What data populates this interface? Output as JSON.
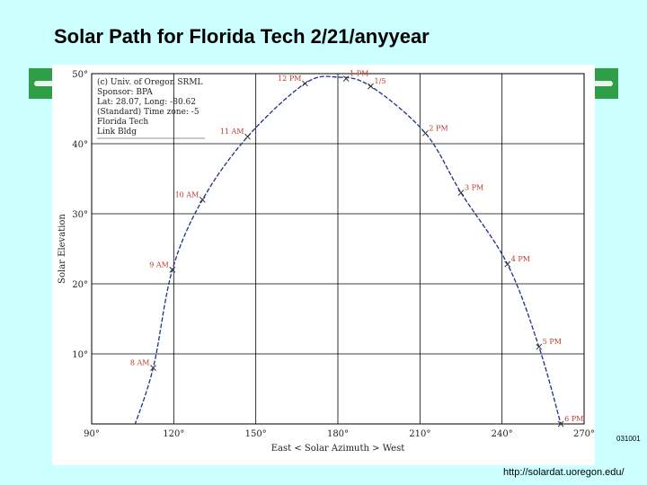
{
  "slide": {
    "title": "Solar Path for Florida Tech 2/21/anyyear",
    "code": "031001",
    "source": "http://solardat.uoregon.edu/"
  },
  "colors": {
    "background": "#ccffff",
    "accent": "#2e9e47",
    "curve": "#1f2f8f",
    "hour_label": "#c0392b",
    "grid": "#000000"
  },
  "chart_data": {
    "type": "line",
    "title": "",
    "xlabel": "East <    Solar Azimuth    > West",
    "ylabel": "Solar Elevation",
    "xlim": [
      90,
      270
    ],
    "ylim": [
      0,
      50
    ],
    "grid": true,
    "x_ticks": [
      {
        "value": 90,
        "label": "90°"
      },
      {
        "value": 120,
        "label": "120°"
      },
      {
        "value": 150,
        "label": "150°"
      },
      {
        "value": 180,
        "label": "180°"
      },
      {
        "value": 210,
        "label": "210°"
      },
      {
        "value": 240,
        "label": "240°"
      },
      {
        "value": 270,
        "label": "270°"
      }
    ],
    "y_ticks": [
      {
        "value": 10,
        "label": "10°"
      },
      {
        "value": 20,
        "label": "20°"
      },
      {
        "value": 30,
        "label": "30°"
      },
      {
        "value": 40,
        "label": "40°"
      },
      {
        "value": 50,
        "label": "50°"
      }
    ],
    "series": [
      {
        "name": "Solar path 2/21",
        "points": [
          {
            "x": 105,
            "y": -1
          },
          {
            "x": 112.5,
            "y": 8
          },
          {
            "x": 119.5,
            "y": 22
          },
          {
            "x": 130.5,
            "y": 32
          },
          {
            "x": 147,
            "y": 41
          },
          {
            "x": 168,
            "y": 48.6
          },
          {
            "x": 180,
            "y": 49.5
          },
          {
            "x": 192,
            "y": 48.2
          },
          {
            "x": 212,
            "y": 41.5
          },
          {
            "x": 225,
            "y": 33
          },
          {
            "x": 242,
            "y": 22.8
          },
          {
            "x": 253.5,
            "y": 11
          },
          {
            "x": 261.5,
            "y": 0
          }
        ]
      }
    ],
    "hour_markers": [
      {
        "label": "8 AM",
        "x": 112.5,
        "y": 8
      },
      {
        "label": "9 AM",
        "x": 119.5,
        "y": 22
      },
      {
        "label": "10 AM",
        "x": 130.5,
        "y": 32
      },
      {
        "label": "11 AM",
        "x": 147,
        "y": 41
      },
      {
        "label": "12 PM",
        "x": 168,
        "y": 48.6
      },
      {
        "label": "1 PM",
        "x": 183,
        "y": 49.3
      },
      {
        "label": "1/5",
        "x": 192,
        "y": 48.2
      },
      {
        "label": "2 PM",
        "x": 212,
        "y": 41.5
      },
      {
        "label": "3 PM",
        "x": 225,
        "y": 33
      },
      {
        "label": "4 PM",
        "x": 242,
        "y": 22.8
      },
      {
        "label": "5 PM",
        "x": 253.5,
        "y": 11
      },
      {
        "label": "6 PM",
        "x": 261.5,
        "y": 0
      }
    ],
    "annotations": [
      "(c) Univ. of Oregon SRML",
      "Sponsor: BPA",
      "Lat: 28.07, Long: -80.62",
      "(Standard) Time zone: -5",
      "Florida Tech",
      "Link Bldg"
    ]
  }
}
